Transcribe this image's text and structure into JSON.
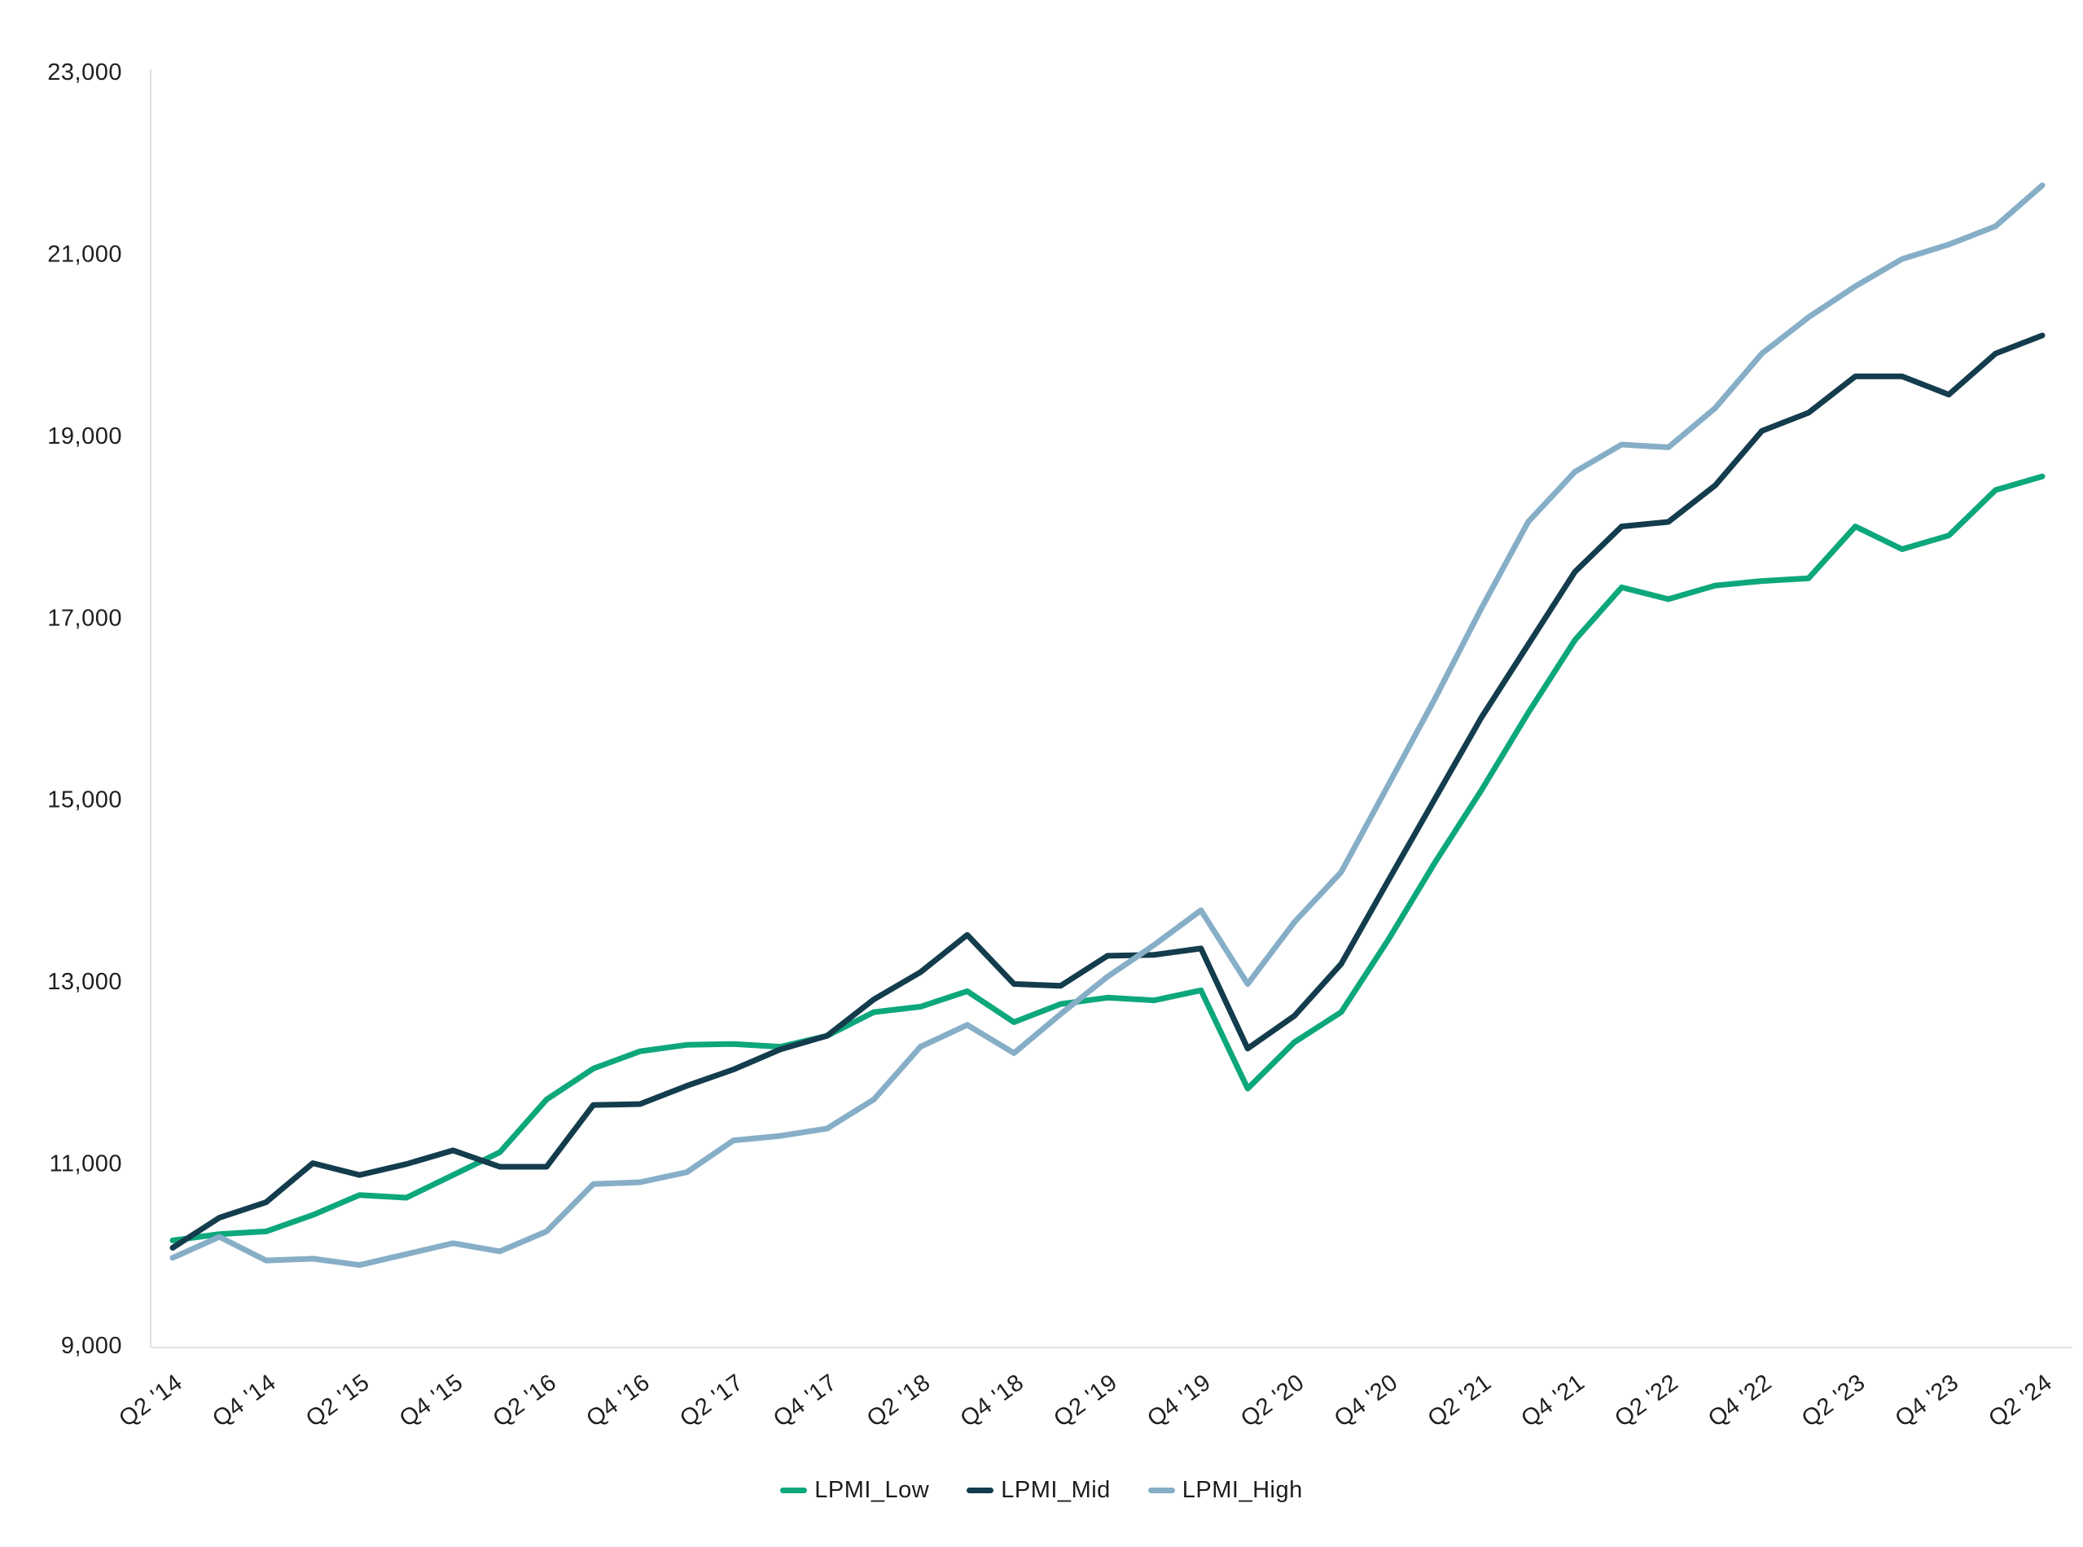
{
  "chart_data": {
    "type": "line",
    "title": "",
    "xlabel": "",
    "ylabel": "",
    "grid": false,
    "legend_position": "bottom-center",
    "y_axis": {
      "min": 9000,
      "max": 23000,
      "tick_step": 2000,
      "tick_labels": [
        "9,000",
        "11,000",
        "13,000",
        "15,000",
        "17,000",
        "19,000",
        "21,000",
        "23,000"
      ]
    },
    "x_axis": {
      "points_count": 41,
      "tick_every": 2,
      "tick_labels": [
        "Q2 '14",
        "Q4 '14",
        "Q2 '15",
        "Q4 '15",
        "Q2 '16",
        "Q4 '16",
        "Q2 '17",
        "Q4 '17",
        "Q2 '18",
        "Q4 '18",
        "Q2 '19",
        "Q4 '19",
        "Q2 '20",
        "Q4 '20",
        "Q2 '21",
        "Q4 '21",
        "Q2 '22",
        "Q4 '22",
        "Q2 '23",
        "Q4 '23",
        "Q2 '24"
      ]
    },
    "series": [
      {
        "name": "LPMI_Low",
        "color": "#0da77c",
        "values": [
          10150,
          10220,
          10250,
          10430,
          10650,
          10620,
          10870,
          11120,
          11700,
          12040,
          12230,
          12300,
          12310,
          12280,
          12400,
          12660,
          12720,
          12890,
          12550,
          12750,
          12820,
          12790,
          12900,
          11820,
          12330,
          12660,
          13450,
          14300,
          15100,
          15950,
          16750,
          17330,
          17200,
          17350,
          17400,
          17430,
          18000,
          17750,
          17900,
          18400,
          18550
        ]
      },
      {
        "name": "LPMI_Mid",
        "color": "#133c4d",
        "values": [
          10070,
          10400,
          10570,
          11000,
          10870,
          10990,
          11140,
          10960,
          10960,
          11640,
          11650,
          11850,
          12030,
          12250,
          12400,
          12800,
          13100,
          13510,
          12970,
          12950,
          13280,
          13290,
          13360,
          12260,
          12620,
          13190,
          14100,
          15000,
          15900,
          16700,
          17500,
          18000,
          18050,
          18450,
          19050,
          19250,
          19650,
          19650,
          19450,
          19900,
          20100
        ]
      },
      {
        "name": "LPMI_High",
        "color": "#86aec7",
        "values": [
          9960,
          10190,
          9930,
          9950,
          9880,
          10000,
          10120,
          10030,
          10250,
          10770,
          10790,
          10900,
          11250,
          11300,
          11380,
          11700,
          12280,
          12520,
          12210,
          12640,
          13050,
          13400,
          13780,
          12970,
          13650,
          14200,
          15150,
          16100,
          17100,
          18050,
          18600,
          18900,
          18870,
          19300,
          19900,
          20300,
          20640,
          20940,
          21100,
          21300,
          21750
        ]
      }
    ],
    "axis_line_color": "#e4dfdb",
    "text_color": "#1f1f1f"
  }
}
